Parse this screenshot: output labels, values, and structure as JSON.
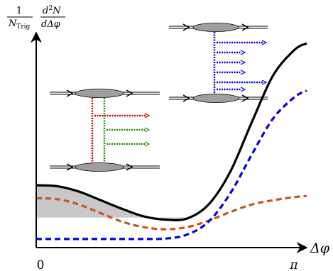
{
  "chart_data": {
    "type": "line",
    "ylabel": {
      "prefactor_num": "1",
      "prefactor_den": "N",
      "prefactor_den_sub": "Trig",
      "deriv_num": "d",
      "deriv_num_exp": "2",
      "deriv_num_var": "N",
      "deriv_den": "dΔφ"
    },
    "xlabel": "Δφ",
    "x_ticks": [
      {
        "value": 0,
        "label": "0"
      },
      {
        "value": 3.1416,
        "label": "π"
      }
    ],
    "xlim": [
      0,
      3.1416
    ],
    "ylim": [
      0,
      1
    ],
    "grid": false,
    "legend": "none",
    "pedestal_level": 0.14,
    "series": [
      {
        "color": "#000000",
        "style": "solid",
        "x": [
          0,
          0.25,
          0.5,
          0.75,
          1.0,
          1.25,
          1.5,
          1.75,
          2.0,
          2.25,
          2.5,
          2.75,
          3.0,
          3.1416
        ],
        "y": [
          0.29,
          0.285,
          0.26,
          0.22,
          0.18,
          0.145,
          0.13,
          0.135,
          0.2,
          0.35,
          0.58,
          0.8,
          0.92,
          0.95
        ]
      },
      {
        "color": "#0000dd",
        "style": "dashed",
        "x": [
          0,
          0.25,
          0.5,
          0.75,
          1.0,
          1.25,
          1.5,
          1.75,
          2.0,
          2.25,
          2.5,
          2.75,
          3.0,
          3.1416
        ],
        "y": [
          0.04,
          0.04,
          0.04,
          0.04,
          0.04,
          0.04,
          0.042,
          0.06,
          0.12,
          0.25,
          0.43,
          0.6,
          0.7,
          0.73
        ]
      },
      {
        "color": "#c4561f",
        "style": "dashed",
        "x": [
          0,
          0.25,
          0.5,
          0.75,
          1.0,
          1.25,
          1.5,
          1.75,
          2.0,
          2.25,
          2.5,
          2.75,
          3.0,
          3.1416
        ],
        "y": [
          0.23,
          0.225,
          0.2,
          0.16,
          0.12,
          0.095,
          0.085,
          0.095,
          0.125,
          0.165,
          0.2,
          0.22,
          0.235,
          0.24
        ]
      }
    ]
  },
  "insets": {
    "left": {
      "rung_colors": [
        "#c00000",
        "#2e8b00"
      ]
    },
    "right": {
      "rung_color": "#0000dd",
      "rung_count": 6
    }
  }
}
